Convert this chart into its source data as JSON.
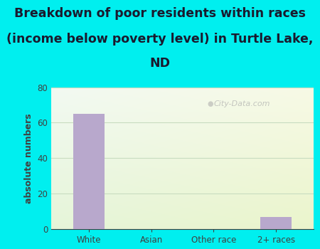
{
  "categories": [
    "White",
    "Asian",
    "Other race",
    "2+ races"
  ],
  "values": [
    65,
    0,
    0,
    7
  ],
  "bar_color": "#b8a8cc",
  "title_line1": "Breakdown of poor residents within races",
  "title_line2": "(income below poverty level) in Turtle Lake,",
  "title_line3": "ND",
  "ylabel": "absolute numbers",
  "ylim": [
    0,
    80
  ],
  "yticks": [
    0,
    20,
    40,
    60,
    80
  ],
  "background_color": "#00efef",
  "grid_color": "#c8dcc0",
  "title_color": "#1a1a2e",
  "tick_color": "#404040",
  "watermark": "City-Data.com",
  "title_fontsize": 12.5,
  "ylabel_fontsize": 9
}
